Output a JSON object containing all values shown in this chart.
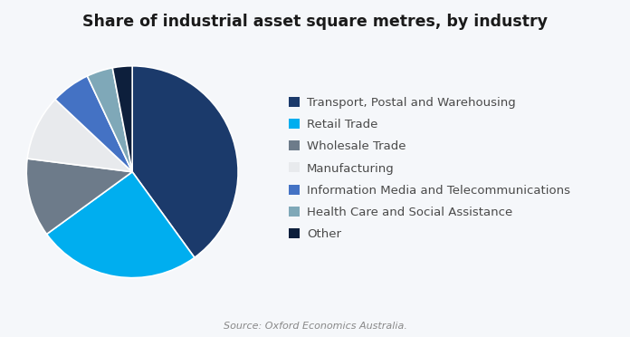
{
  "title": "Share of industrial asset square metres, by industry",
  "source_text": "Source: Oxford Economics Australia.",
  "labels": [
    "Transport, Postal and Warehousing",
    "Retail Trade",
    "Wholesale Trade",
    "Manufacturing",
    "Information Media and Telecommunications",
    "Health Care and Social Assistance",
    "Other"
  ],
  "values": [
    40,
    25,
    12,
    10,
    6,
    4,
    3
  ],
  "colors": [
    "#1b3a6b",
    "#00aeef",
    "#6d7b8a",
    "#e8eaed",
    "#4472c4",
    "#7fa8b8",
    "#0d1f3c"
  ],
  "background_color": "#f5f7fa",
  "startangle": 90,
  "legend_fontsize": 9.5,
  "title_fontsize": 12.5,
  "source_fontsize": 8
}
